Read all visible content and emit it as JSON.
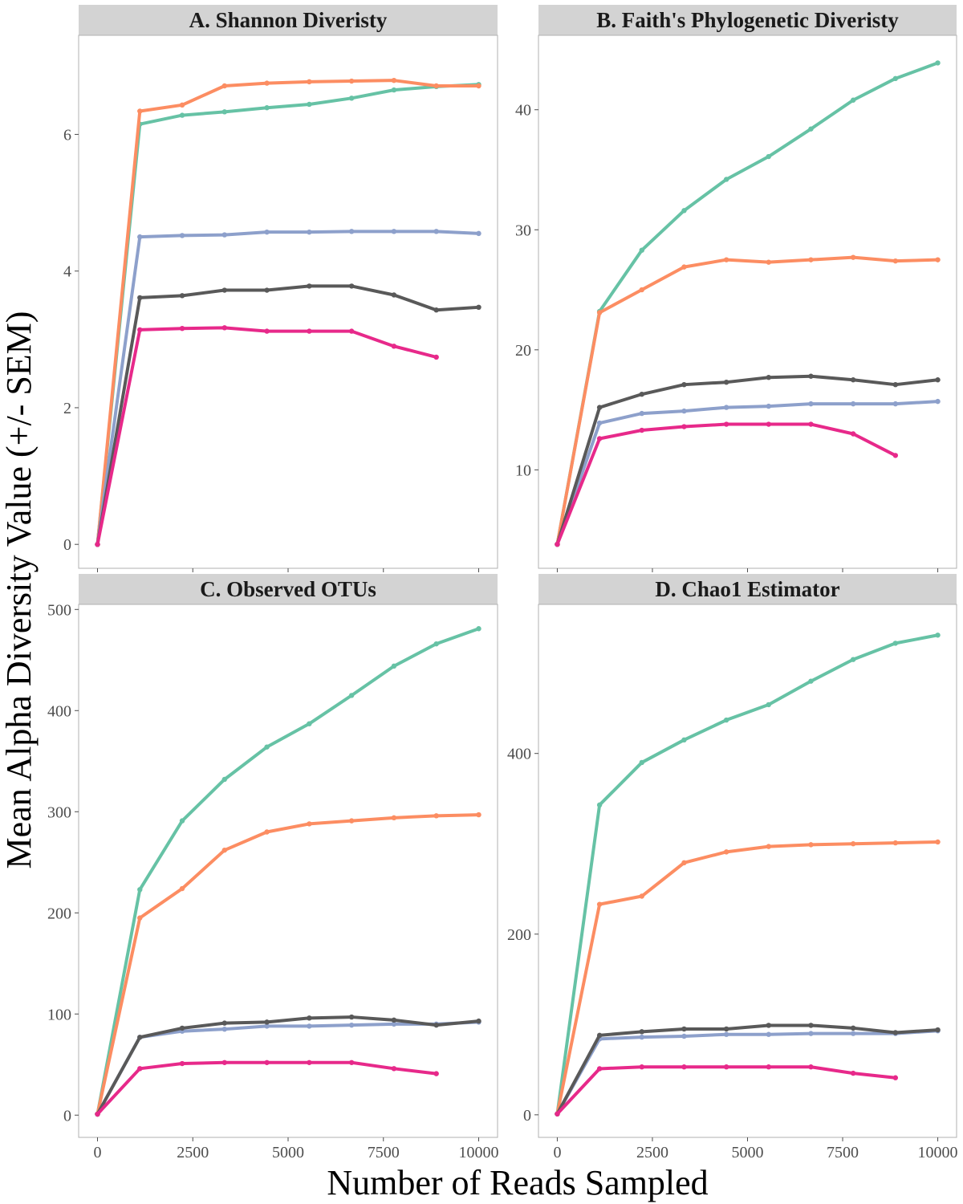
{
  "xlabel": "Number of Reads Sampled",
  "ylabel": "Mean Alpha Diversity Value (+/- SEM)",
  "series_colors": [
    "#66C2A5",
    "#FC8D62",
    "#8DA0CB",
    "#595959",
    "#E7298A"
  ],
  "chart_data": [
    {
      "type": "line",
      "title": "A. Shannon Diveristy",
      "xlim": [
        0,
        10000
      ],
      "ylim": [
        -0.35,
        7.45
      ],
      "xticks": [
        0,
        2500,
        5000,
        7500,
        10000
      ],
      "xtick_labels": [
        "0",
        "2500",
        "5000",
        "7500",
        "10000"
      ],
      "yticks": [
        0,
        2,
        4,
        6
      ],
      "ytick_labels": [
        "0",
        "2",
        "4",
        "6"
      ],
      "x": [
        0,
        1111,
        2222,
        3333,
        4444,
        5555,
        6666,
        7777,
        8888,
        10000
      ],
      "series": [
        {
          "color": "#66C2A5",
          "values": [
            0,
            6.15,
            6.28,
            6.33,
            6.39,
            6.44,
            6.53,
            6.65,
            6.7,
            6.73
          ]
        },
        {
          "color": "#FC8D62",
          "values": [
            0,
            6.34,
            6.43,
            6.71,
            6.75,
            6.77,
            6.78,
            6.79,
            6.71,
            6.71
          ]
        },
        {
          "color": "#8DA0CB",
          "values": [
            0,
            4.5,
            4.52,
            4.53,
            4.57,
            4.57,
            4.58,
            4.58,
            4.58,
            4.55
          ]
        },
        {
          "color": "#595959",
          "values": [
            0,
            3.61,
            3.64,
            3.72,
            3.72,
            3.78,
            3.78,
            3.65,
            3.43,
            3.47
          ]
        },
        {
          "color": "#E7298A",
          "values": [
            0,
            3.14,
            3.16,
            3.17,
            3.12,
            3.12,
            3.12,
            2.9,
            2.74,
            null
          ]
        }
      ]
    },
    {
      "type": "line",
      "title": "B. Faith's Phylogenetic Diveristy",
      "xlim": [
        0,
        10000
      ],
      "ylim": [
        1.8,
        46.2
      ],
      "xticks": [
        0,
        2500,
        5000,
        7500,
        10000
      ],
      "xtick_labels": [
        "0",
        "2500",
        "5000",
        "7500",
        "10000"
      ],
      "yticks": [
        10,
        20,
        30,
        40
      ],
      "ytick_labels": [
        "10",
        "20",
        "30",
        "40"
      ],
      "x": [
        0,
        1111,
        2222,
        3333,
        4444,
        5555,
        6666,
        7777,
        8888,
        10000
      ],
      "series": [
        {
          "color": "#66C2A5",
          "values": [
            3.8,
            23.2,
            28.3,
            31.6,
            34.2,
            36.1,
            38.4,
            40.8,
            42.6,
            43.9
          ]
        },
        {
          "color": "#FC8D62",
          "values": [
            3.8,
            23.1,
            25.0,
            26.9,
            27.5,
            27.3,
            27.5,
            27.7,
            27.4,
            27.5
          ]
        },
        {
          "color": "#8DA0CB",
          "values": [
            3.8,
            13.9,
            14.7,
            14.9,
            15.2,
            15.3,
            15.5,
            15.5,
            15.5,
            15.7
          ]
        },
        {
          "color": "#595959",
          "values": [
            3.8,
            15.2,
            16.3,
            17.1,
            17.3,
            17.7,
            17.8,
            17.5,
            17.1,
            17.5
          ]
        },
        {
          "color": "#E7298A",
          "values": [
            3.8,
            12.6,
            13.3,
            13.6,
            13.8,
            13.8,
            13.8,
            13.0,
            11.2,
            null
          ]
        }
      ]
    },
    {
      "type": "line",
      "title": "C. Observed OTUs",
      "xlim": [
        0,
        10000
      ],
      "ylim": [
        -22,
        505
      ],
      "xticks": [
        0,
        2500,
        5000,
        7500,
        10000
      ],
      "xtick_labels": [
        "0",
        "2500",
        "5000",
        "7500",
        "10000"
      ],
      "yticks": [
        0,
        100,
        200,
        300,
        400,
        500
      ],
      "ytick_labels": [
        "0",
        "100",
        "200",
        "300",
        "400",
        "500"
      ],
      "x": [
        0,
        1111,
        2222,
        3333,
        4444,
        5555,
        6666,
        7777,
        8888,
        10000
      ],
      "series": [
        {
          "color": "#66C2A5",
          "values": [
            1,
            223,
            291,
            332,
            364,
            387,
            415,
            444,
            466,
            481
          ]
        },
        {
          "color": "#FC8D62",
          "values": [
            1,
            195,
            224,
            262,
            280,
            288,
            291,
            294,
            296,
            297
          ]
        },
        {
          "color": "#8DA0CB",
          "values": [
            1,
            77,
            83,
            85,
            88,
            88,
            89,
            90,
            90,
            92
          ]
        },
        {
          "color": "#595959",
          "values": [
            1,
            77,
            86,
            91,
            92,
            96,
            97,
            94,
            89,
            93
          ]
        },
        {
          "color": "#E7298A",
          "values": [
            1,
            46,
            51,
            52,
            52,
            52,
            52,
            46,
            41,
            null
          ]
        }
      ]
    },
    {
      "type": "line",
      "title": "D. Chao1 Estimator",
      "xlim": [
        0,
        10000
      ],
      "ylim": [
        -25,
        565
      ],
      "xticks": [
        0,
        2500,
        5000,
        7500,
        10000
      ],
      "xtick_labels": [
        "0",
        "2500",
        "5000",
        "7500",
        "10000"
      ],
      "yticks": [
        0,
        200,
        400
      ],
      "ytick_labels": [
        "0",
        "200",
        "400"
      ],
      "x": [
        0,
        1111,
        2222,
        3333,
        4444,
        5555,
        6666,
        7777,
        8888,
        10000
      ],
      "series": [
        {
          "color": "#66C2A5",
          "values": [
            1,
            343,
            390,
            415,
            437,
            454,
            480,
            504,
            522,
            531
          ]
        },
        {
          "color": "#FC8D62",
          "values": [
            1,
            233,
            242,
            279,
            291,
            297,
            299,
            300,
            301,
            302
          ]
        },
        {
          "color": "#8DA0CB",
          "values": [
            1,
            84,
            86,
            87,
            89,
            89,
            90,
            90,
            90,
            93
          ]
        },
        {
          "color": "#595959",
          "values": [
            1,
            88,
            92,
            95,
            95,
            99,
            99,
            96,
            91,
            94
          ]
        },
        {
          "color": "#E7298A",
          "values": [
            1,
            51,
            53,
            53,
            53,
            53,
            53,
            46,
            41,
            null
          ]
        }
      ]
    }
  ]
}
